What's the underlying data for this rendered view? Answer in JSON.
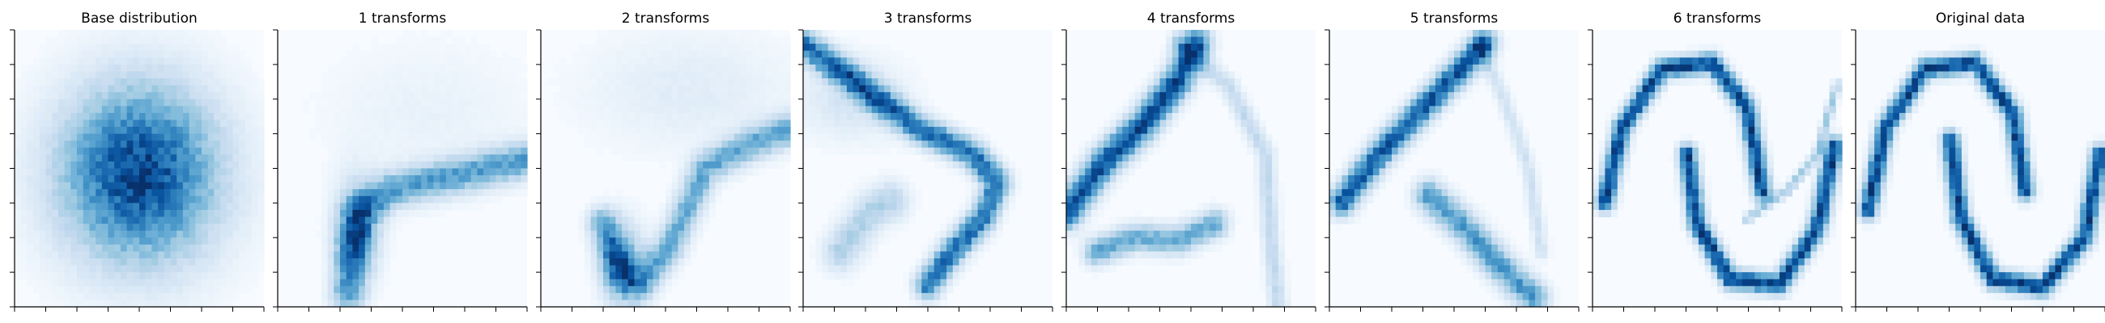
{
  "figure": {
    "panels": [
      {
        "title": "Base distribution"
      },
      {
        "title": "1 transforms"
      },
      {
        "title": "2 transforms"
      },
      {
        "title": "3 transforms"
      },
      {
        "title": "4 transforms"
      },
      {
        "title": "5 transforms"
      },
      {
        "title": "6 transforms"
      },
      {
        "title": "Original data"
      }
    ],
    "colormap": "Blues",
    "colors": {
      "low": "#f7fbff",
      "mid": "#6baed6",
      "high": "#08306b",
      "axis": "#000000"
    }
  },
  "chart_data": [
    {
      "type": "heatmap",
      "title": "Base distribution",
      "xlabel": "",
      "ylabel": "",
      "tick_labels": "none",
      "description": "2D histogram density, isotropic Gaussian-like blob centered in panel",
      "series": [
        {
          "kind": "gaussian",
          "cx": 0.5,
          "cy": 0.52,
          "sx": 0.22,
          "sy": 0.22,
          "w": 1.0
        }
      ]
    },
    {
      "type": "heatmap",
      "title": "1 transforms",
      "xlabel": "",
      "ylabel": "",
      "tick_labels": "none",
      "series": [
        {
          "kind": "curve",
          "pts": [
            [
              0.28,
              0.95
            ],
            [
              0.3,
              0.78
            ],
            [
              0.33,
              0.66
            ],
            [
              0.45,
              0.58
            ],
            [
              0.65,
              0.54
            ],
            [
              1.0,
              0.47
            ]
          ],
          "width": 0.045,
          "w": 0.9
        },
        {
          "kind": "gaussian",
          "cx": 0.32,
          "cy": 0.72,
          "sx": 0.06,
          "sy": 0.12,
          "w": 0.8
        },
        {
          "kind": "gaussian",
          "cx": 0.6,
          "cy": 0.3,
          "sx": 0.3,
          "sy": 0.18,
          "w": 0.12
        }
      ]
    },
    {
      "type": "heatmap",
      "title": "2 transforms",
      "xlabel": "",
      "ylabel": "",
      "tick_labels": "none",
      "series": [
        {
          "kind": "curve",
          "pts": [
            [
              0.25,
              0.7
            ],
            [
              0.32,
              0.88
            ],
            [
              0.4,
              0.92
            ],
            [
              0.52,
              0.78
            ],
            [
              0.66,
              0.5
            ],
            [
              0.85,
              0.41
            ],
            [
              1.0,
              0.36
            ]
          ],
          "width": 0.04,
          "w": 0.9
        },
        {
          "kind": "gaussian",
          "cx": 0.33,
          "cy": 0.85,
          "sx": 0.06,
          "sy": 0.1,
          "w": 0.9
        },
        {
          "kind": "gaussian",
          "cx": 0.6,
          "cy": 0.22,
          "sx": 0.3,
          "sy": 0.15,
          "w": 0.2
        }
      ]
    },
    {
      "type": "heatmap",
      "title": "3 transforms",
      "xlabel": "",
      "ylabel": "",
      "tick_labels": "none",
      "series": [
        {
          "kind": "curve",
          "pts": [
            [
              0.0,
              0.05
            ],
            [
              0.2,
              0.18
            ],
            [
              0.45,
              0.35
            ],
            [
              0.68,
              0.45
            ],
            [
              0.78,
              0.55
            ],
            [
              0.72,
              0.68
            ],
            [
              0.6,
              0.8
            ],
            [
              0.5,
              0.92
            ]
          ],
          "width": 0.035,
          "w": 0.85
        },
        {
          "kind": "curve",
          "pts": [
            [
              0.15,
              0.8
            ],
            [
              0.28,
              0.65
            ],
            [
              0.35,
              0.62
            ]
          ],
          "width": 0.05,
          "w": 0.35
        },
        {
          "kind": "gaussian",
          "cx": 0.2,
          "cy": 0.25,
          "sx": 0.15,
          "sy": 0.1,
          "w": 0.2
        }
      ]
    },
    {
      "type": "heatmap",
      "title": "4 transforms",
      "xlabel": "",
      "ylabel": "",
      "tick_labels": "none",
      "series": [
        {
          "kind": "curve",
          "pts": [
            [
              0.0,
              0.66
            ],
            [
              0.15,
              0.48
            ],
            [
              0.3,
              0.35
            ],
            [
              0.45,
              0.18
            ],
            [
              0.52,
              0.05
            ]
          ],
          "width": 0.04,
          "w": 0.85
        },
        {
          "kind": "curve",
          "pts": [
            [
              0.12,
              0.8
            ],
            [
              0.28,
              0.75
            ],
            [
              0.45,
              0.76
            ],
            [
              0.6,
              0.7
            ]
          ],
          "width": 0.035,
          "w": 0.5
        },
        {
          "kind": "curve",
          "pts": [
            [
              0.45,
              0.05
            ],
            [
              0.65,
              0.2
            ],
            [
              0.8,
              0.45
            ],
            [
              0.82,
              0.75
            ],
            [
              0.85,
              1.0
            ]
          ],
          "width": 0.025,
          "w": 0.25
        }
      ]
    },
    {
      "type": "heatmap",
      "title": "5 transforms",
      "xlabel": "",
      "ylabel": "",
      "tick_labels": "none",
      "series": [
        {
          "kind": "curve",
          "pts": [
            [
              0.05,
              0.62
            ],
            [
              0.2,
              0.45
            ],
            [
              0.38,
              0.28
            ],
            [
              0.55,
              0.12
            ],
            [
              0.62,
              0.05
            ]
          ],
          "width": 0.035,
          "w": 0.85
        },
        {
          "kind": "curve",
          "pts": [
            [
              0.4,
              0.6
            ],
            [
              0.55,
              0.72
            ],
            [
              0.68,
              0.85
            ],
            [
              0.82,
              0.97
            ]
          ],
          "width": 0.04,
          "w": 0.6
        },
        {
          "kind": "curve",
          "pts": [
            [
              0.6,
              0.05
            ],
            [
              0.7,
              0.25
            ],
            [
              0.8,
              0.5
            ],
            [
              0.85,
              0.8
            ]
          ],
          "width": 0.02,
          "w": 0.2
        }
      ]
    },
    {
      "type": "heatmap",
      "title": "6 transforms",
      "xlabel": "",
      "ylabel": "",
      "tick_labels": "none",
      "series": [
        {
          "kind": "curve",
          "pts": [
            [
              0.05,
              0.62
            ],
            [
              0.12,
              0.35
            ],
            [
              0.28,
              0.14
            ],
            [
              0.48,
              0.12
            ],
            [
              0.62,
              0.28
            ],
            [
              0.68,
              0.58
            ]
          ],
          "width": 0.025,
          "w": 0.9
        },
        {
          "kind": "curve",
          "pts": [
            [
              0.38,
              0.45
            ],
            [
              0.42,
              0.7
            ],
            [
              0.55,
              0.9
            ],
            [
              0.75,
              0.92
            ],
            [
              0.9,
              0.72
            ],
            [
              0.97,
              0.42
            ]
          ],
          "width": 0.025,
          "w": 0.9
        },
        {
          "kind": "curve",
          "pts": [
            [
              0.62,
              0.68
            ],
            [
              0.78,
              0.58
            ],
            [
              0.9,
              0.45
            ],
            [
              0.98,
              0.2
            ]
          ],
          "width": 0.012,
          "w": 0.35
        }
      ]
    },
    {
      "type": "heatmap",
      "title": "Original data",
      "xlabel": "",
      "ylabel": "",
      "tick_labels": "none",
      "description": "Two interleaving half-moons",
      "series": [
        {
          "kind": "curve",
          "pts": [
            [
              0.05,
              0.65
            ],
            [
              0.12,
              0.35
            ],
            [
              0.28,
              0.14
            ],
            [
              0.48,
              0.12
            ],
            [
              0.63,
              0.3
            ],
            [
              0.68,
              0.58
            ]
          ],
          "width": 0.025,
          "w": 0.95
        },
        {
          "kind": "curve",
          "pts": [
            [
              0.38,
              0.4
            ],
            [
              0.42,
              0.68
            ],
            [
              0.55,
              0.9
            ],
            [
              0.75,
              0.93
            ],
            [
              0.92,
              0.75
            ],
            [
              0.98,
              0.45
            ]
          ],
          "width": 0.025,
          "w": 0.95
        }
      ]
    }
  ]
}
